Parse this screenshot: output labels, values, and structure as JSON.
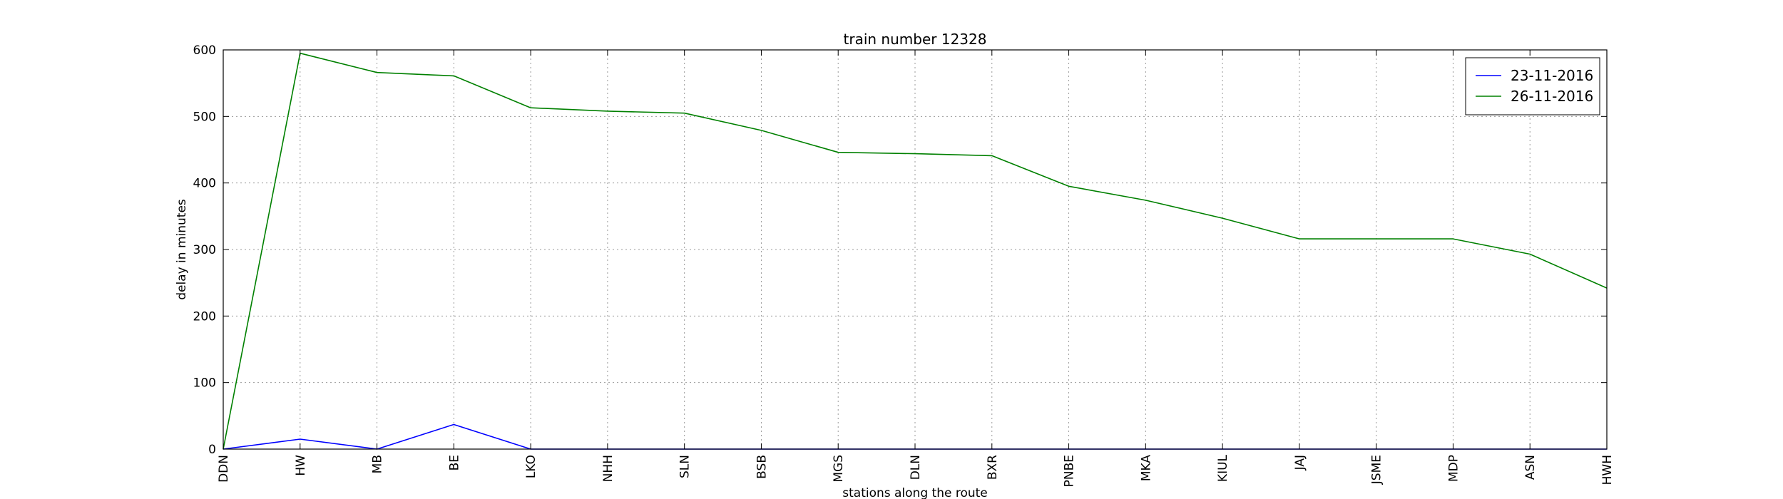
{
  "chart_data": {
    "type": "line",
    "title": "train number 12328",
    "xlabel": "stations along the route",
    "ylabel": "delay in minutes",
    "categories": [
      "DDN",
      "HW",
      "MB",
      "BE",
      "LKO",
      "NHH",
      "SLN",
      "BSB",
      "MGS",
      "DLN",
      "BXR",
      "PNBE",
      "MKA",
      "KIUL",
      "JAJ",
      "JSME",
      "MDP",
      "ASN",
      "HWH"
    ],
    "ylim": [
      0,
      600
    ],
    "yticks": [
      0,
      100,
      200,
      300,
      400,
      500,
      600
    ],
    "grid": true,
    "legend_position": "top-right",
    "series": [
      {
        "name": "23-11-2016",
        "color": "#0000ff",
        "values": [
          0,
          15,
          0,
          37,
          0,
          0,
          0,
          0,
          0,
          0,
          0,
          0,
          0,
          0,
          0,
          0,
          0,
          0,
          0
        ]
      },
      {
        "name": "26-11-2016",
        "color": "#008000",
        "values": [
          0,
          595,
          566,
          561,
          513,
          508,
          505,
          479,
          446,
          444,
          441,
          395,
          374,
          347,
          316,
          316,
          316,
          293,
          242
        ]
      }
    ]
  }
}
